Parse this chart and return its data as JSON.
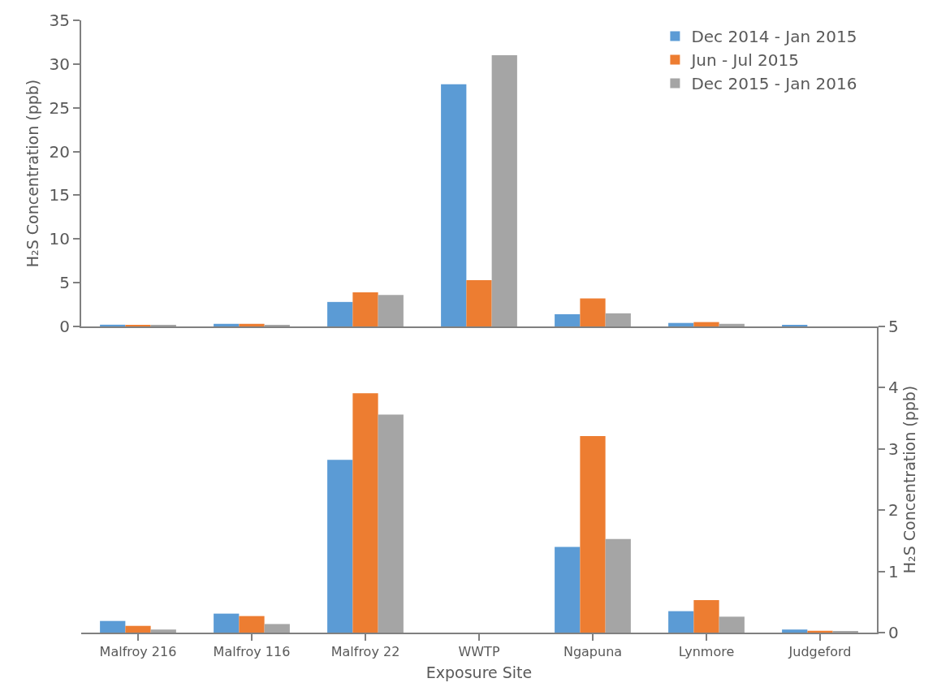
{
  "chart_data": [
    {
      "type": "bar",
      "ylabel": "H₂S Concentration (ppb)",
      "categories": [
        null,
        null,
        null,
        null,
        null,
        null,
        null
      ],
      "series": [
        {
          "name": "Dec 2014 - Jan 2015",
          "color": "#5b9bd5",
          "values": [
            0.2,
            0.3,
            2.8,
            27.7,
            1.4,
            0.4,
            0.1
          ]
        },
        {
          "name": "Jun - Jul 2015",
          "color": "#ed7d31",
          "values": [
            0.1,
            0.3,
            3.9,
            5.3,
            3.2,
            0.5,
            0.0
          ]
        },
        {
          "name": "Dec 2015 - Jan 2016",
          "color": "#a5a5a5",
          "values": [
            0.1,
            0.1,
            3.6,
            31.0,
            1.5,
            0.3,
            0.0
          ]
        }
      ],
      "ylim": [
        0,
        35
      ],
      "yticks": [
        0,
        5,
        10,
        15,
        20,
        25,
        30,
        35
      ],
      "grid": false,
      "legend": "top right",
      "tick_labels": "y"
    },
    {
      "type": "bar",
      "xlabel": "Exposure Site",
      "y2label": "H₂S Concentration (ppb)",
      "categories": [
        "Malfroy 216",
        "Malfroy 116",
        "Malfroy 22",
        "WWTP",
        "Ngapuna",
        "Lynmore",
        "Judgeford"
      ],
      "series": [
        {
          "color": "#5b9bd5",
          "axis": "y2",
          "values": [
            0.19,
            0.31,
            2.82,
            null,
            1.4,
            0.35,
            0.05
          ]
        },
        {
          "color": "#ed7d31",
          "axis": "y2",
          "values": [
            0.11,
            0.27,
            3.91,
            null,
            3.21,
            0.53,
            0.03
          ]
        },
        {
          "color": "#a5a5a5",
          "axis": "y2",
          "values": [
            0.05,
            0.14,
            3.56,
            null,
            1.53,
            0.26,
            0.02
          ]
        }
      ],
      "y2lim": [
        0,
        5
      ],
      "y2ticks": [
        0,
        1,
        2,
        3,
        4,
        5
      ],
      "grid": false
    }
  ]
}
